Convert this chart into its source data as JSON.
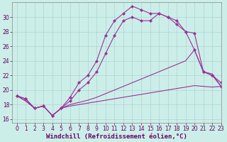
{
  "xlabel": "Windchill (Refroidissement éolien,°C)",
  "bg_color": "#cceee8",
  "line_color": "#993399",
  "grid_color": "#aacccc",
  "xlim": [
    -0.5,
    23
  ],
  "ylim": [
    15.5,
    32.0
  ],
  "xticks": [
    0,
    1,
    2,
    3,
    4,
    5,
    6,
    7,
    8,
    9,
    10,
    11,
    12,
    13,
    14,
    15,
    16,
    17,
    18,
    19,
    20,
    21,
    22,
    23
  ],
  "yticks": [
    16,
    18,
    20,
    22,
    24,
    26,
    28,
    30
  ],
  "line1_x": [
    0,
    1,
    2,
    3,
    4,
    5,
    6,
    7,
    8,
    9,
    10,
    11,
    12,
    13,
    14,
    15,
    16,
    17,
    18,
    19,
    20,
    21,
    22,
    23
  ],
  "line1_y": [
    19.2,
    18.8,
    17.5,
    17.8,
    16.5,
    17.5,
    19.0,
    21.0,
    22.0,
    24.0,
    27.5,
    29.5,
    30.5,
    31.5,
    31.0,
    30.5,
    30.5,
    30.0,
    29.5,
    28.0,
    25.5,
    22.5,
    22.0,
    21.0
  ],
  "line2_x": [
    0,
    1,
    2,
    3,
    4,
    5,
    6,
    7,
    8,
    9,
    10,
    11,
    12,
    13,
    14,
    15,
    16,
    17,
    18,
    19,
    20,
    21,
    22,
    23
  ],
  "line2_y": [
    19.2,
    18.8,
    17.5,
    17.8,
    16.5,
    17.5,
    18.5,
    20.0,
    21.0,
    22.5,
    25.0,
    27.5,
    29.5,
    30.0,
    29.5,
    29.5,
    30.5,
    30.0,
    29.0,
    28.0,
    27.8,
    22.5,
    22.0,
    20.5
  ],
  "line3_x": [
    0,
    1,
    2,
    3,
    4,
    5,
    6,
    7,
    8,
    9,
    10,
    11,
    12,
    13,
    14,
    15,
    16,
    17,
    18,
    19,
    20,
    21,
    22,
    23
  ],
  "line3_y": [
    19.2,
    18.5,
    17.5,
    17.8,
    16.5,
    17.5,
    18.0,
    18.3,
    18.6,
    19.0,
    19.5,
    20.0,
    20.5,
    21.0,
    21.5,
    22.0,
    22.5,
    23.0,
    23.5,
    24.0,
    25.5,
    22.5,
    22.2,
    20.5
  ],
  "line4_x": [
    0,
    1,
    2,
    3,
    4,
    5,
    6,
    7,
    8,
    9,
    10,
    11,
    12,
    13,
    14,
    15,
    16,
    17,
    18,
    19,
    20,
    21,
    22,
    23
  ],
  "line4_y": [
    19.2,
    18.5,
    17.5,
    17.8,
    16.5,
    17.5,
    17.8,
    18.0,
    18.2,
    18.4,
    18.6,
    18.8,
    19.0,
    19.2,
    19.4,
    19.6,
    19.8,
    20.0,
    20.2,
    20.4,
    20.6,
    20.5,
    20.4,
    20.5
  ],
  "tick_fontsize": 5.5,
  "axis_fontsize": 6.5
}
